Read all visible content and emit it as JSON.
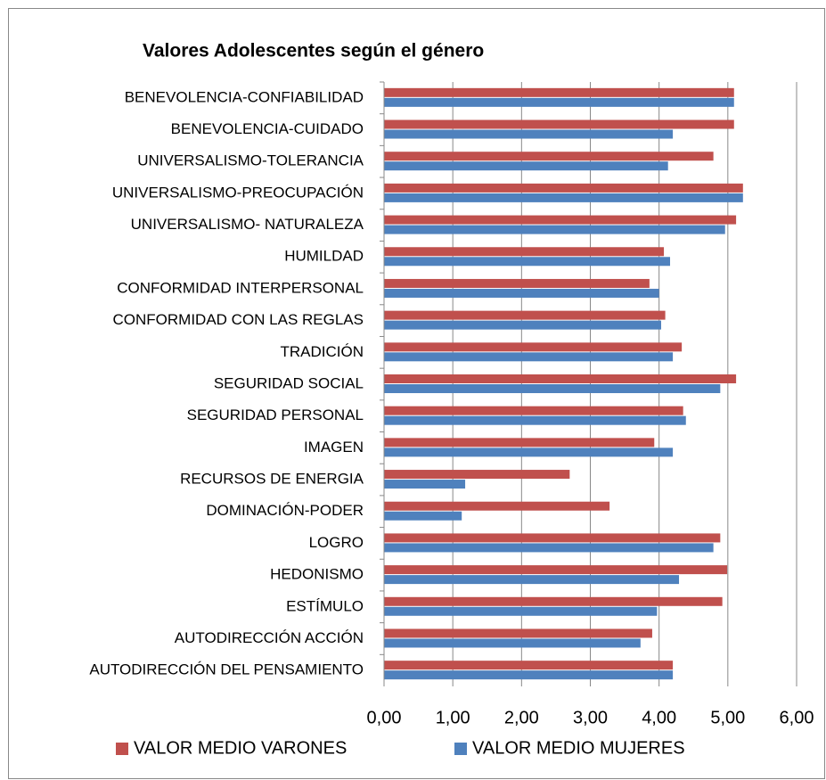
{
  "chart_data": {
    "type": "hbar",
    "title": "Valores Adolescentes según el género",
    "categories": [
      "BENEVOLENCIA-CONFIABILIDAD",
      "BENEVOLENCIA-CUIDADO",
      "UNIVERSALISMO-TOLERANCIA",
      "UNIVERSALISMO-PREOCUPACIÓN",
      "UNIVERSALISMO- NATURALEZA ",
      "HUMILDAD",
      "CONFORMIDAD INTERPERSONAL",
      "CONFORMIDAD CON LAS REGLAS",
      "TRADICIÓN",
      "SEGURIDAD SOCIAL",
      "SEGURIDAD PERSONAL",
      "IMAGEN",
      "RECURSOS DE ENERGIA",
      "DOMINACIÓN-PODER",
      "LOGRO",
      "HEDONISMO",
      "ESTÍMULO",
      "AUTODIRECCIÓN ACCIÓN",
      "AUTODIRECCIÓN DEL PENSAMIENTO"
    ],
    "series": [
      {
        "name": "VALOR MEDIO VARONES",
        "color": "#c0504d",
        "values": [
          5.09,
          5.09,
          4.79,
          5.22,
          5.12,
          4.07,
          3.86,
          4.09,
          4.33,
          5.12,
          4.35,
          3.93,
          2.7,
          3.28,
          4.89,
          4.99,
          4.92,
          3.9,
          4.2
        ]
      },
      {
        "name": "VALOR MEDIO MUJERES",
        "color": "#4f81bd",
        "values": [
          5.09,
          4.2,
          4.13,
          5.22,
          4.96,
          4.16,
          4.0,
          4.03,
          4.2,
          4.89,
          4.39,
          4.2,
          1.18,
          1.13,
          4.79,
          4.29,
          3.97,
          3.73,
          4.2
        ]
      }
    ],
    "xlim": [
      0,
      6
    ],
    "xticks": [
      {
        "value": 0,
        "label": "0,00"
      },
      {
        "value": 1,
        "label": "1,00"
      },
      {
        "value": 2,
        "label": "2,00"
      },
      {
        "value": 3,
        "label": "3,00"
      },
      {
        "value": 4,
        "label": "4,00"
      },
      {
        "value": 5,
        "label": "5,00"
      },
      {
        "value": 6,
        "label": "6,00"
      }
    ],
    "grid": true,
    "legend": "bottom"
  }
}
